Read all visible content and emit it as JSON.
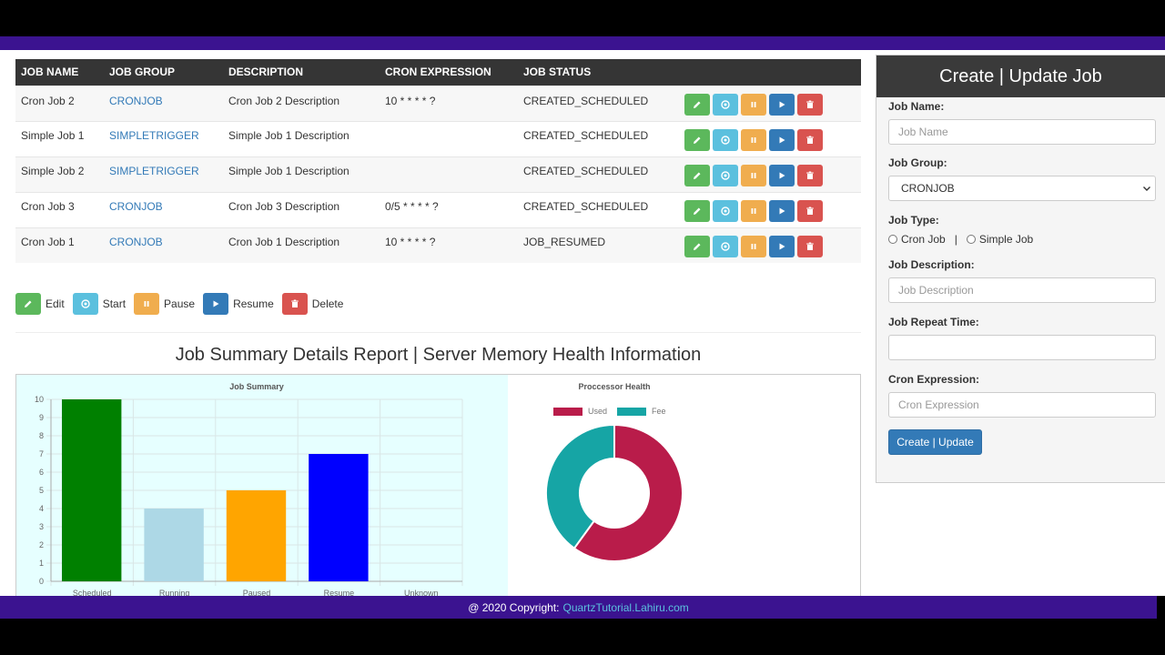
{
  "table": {
    "headers": [
      "JOB NAME",
      "JOB GROUP",
      "DESCRIPTION",
      "CRON EXPRESSION",
      "JOB STATUS"
    ],
    "rows": [
      {
        "name": "Cron Job 2",
        "group": "CRONJOB",
        "description": "Cron Job 2 Description",
        "cron": "10 * * * * ?",
        "status": "CREATED_SCHEDULED"
      },
      {
        "name": "Simple Job 1",
        "group": "SIMPLETRIGGER",
        "description": "Simple Job 1 Description",
        "cron": "",
        "status": "CREATED_SCHEDULED"
      },
      {
        "name": "Simple Job 2",
        "group": "SIMPLETRIGGER",
        "description": "Simple Job 1 Description",
        "cron": "",
        "status": "CREATED_SCHEDULED"
      },
      {
        "name": "Cron Job 3",
        "group": "CRONJOB",
        "description": "Cron Job 3 Description",
        "cron": "0/5 * * * * ?",
        "status": "CREATED_SCHEDULED"
      },
      {
        "name": "Cron Job 1",
        "group": "CRONJOB",
        "description": "Cron Job 1 Description",
        "cron": "10 * * * * ?",
        "status": "JOB_RESUMED"
      }
    ]
  },
  "legend": {
    "edit": "Edit",
    "start": "Start",
    "pause": "Pause",
    "resume": "Resume",
    "delete": "Delete"
  },
  "report": {
    "title": "Job Summary Details Report | Server Memory Health Information"
  },
  "chart_data": [
    {
      "type": "bar",
      "title": "Job Summary",
      "categories": [
        "Scheduled",
        "Running",
        "Paused",
        "Resume",
        "Unknown"
      ],
      "values": [
        10,
        4,
        5,
        7,
        0
      ],
      "colors": [
        "#008000",
        "#add8e6",
        "#ffa500",
        "#0000ff",
        "#cccccc"
      ],
      "ylim": [
        0,
        10
      ],
      "yticks": [
        "0",
        "1",
        "2",
        "3",
        "4",
        "5",
        "6",
        "7",
        "8",
        "9",
        "10"
      ],
      "grid": true
    },
    {
      "type": "pie",
      "title": "Proccessor Health",
      "labels": [
        "Used",
        "Fee"
      ],
      "values": [
        60,
        40
      ],
      "colors": [
        "#b91c4a",
        "#16a5a5"
      ],
      "legend": "top"
    }
  ],
  "form": {
    "title": "Create | Update Job",
    "job_name_label": "Job Name:",
    "job_name_placeholder": "Job Name",
    "job_group_label": "Job Group:",
    "job_group_value": "CRONJOB",
    "job_type_label": "Job Type:",
    "job_type_cron": "Cron Job",
    "job_type_sep": "|",
    "job_type_simple": "Simple Job",
    "job_desc_label": "Job Description:",
    "job_desc_placeholder": "Job Description",
    "repeat_label": "Job Repeat Time:",
    "repeat_value": "",
    "cron_label": "Cron Expression:",
    "cron_placeholder": "Cron Expression",
    "submit": "Create | Update"
  },
  "footer": {
    "text": "@ 2020 Copyright:",
    "link": "QuartzTutorial.Lahiru.com"
  },
  "colors": {
    "brand": "#3b1390",
    "edit": "#5cb85c",
    "start": "#5bc0de",
    "pause": "#f0ad4e",
    "resume": "#337ab7",
    "delete": "#d9534f"
  },
  "icons": [
    "pencil-icon",
    "start-icon",
    "pause-icon",
    "play-icon",
    "trash-icon"
  ]
}
